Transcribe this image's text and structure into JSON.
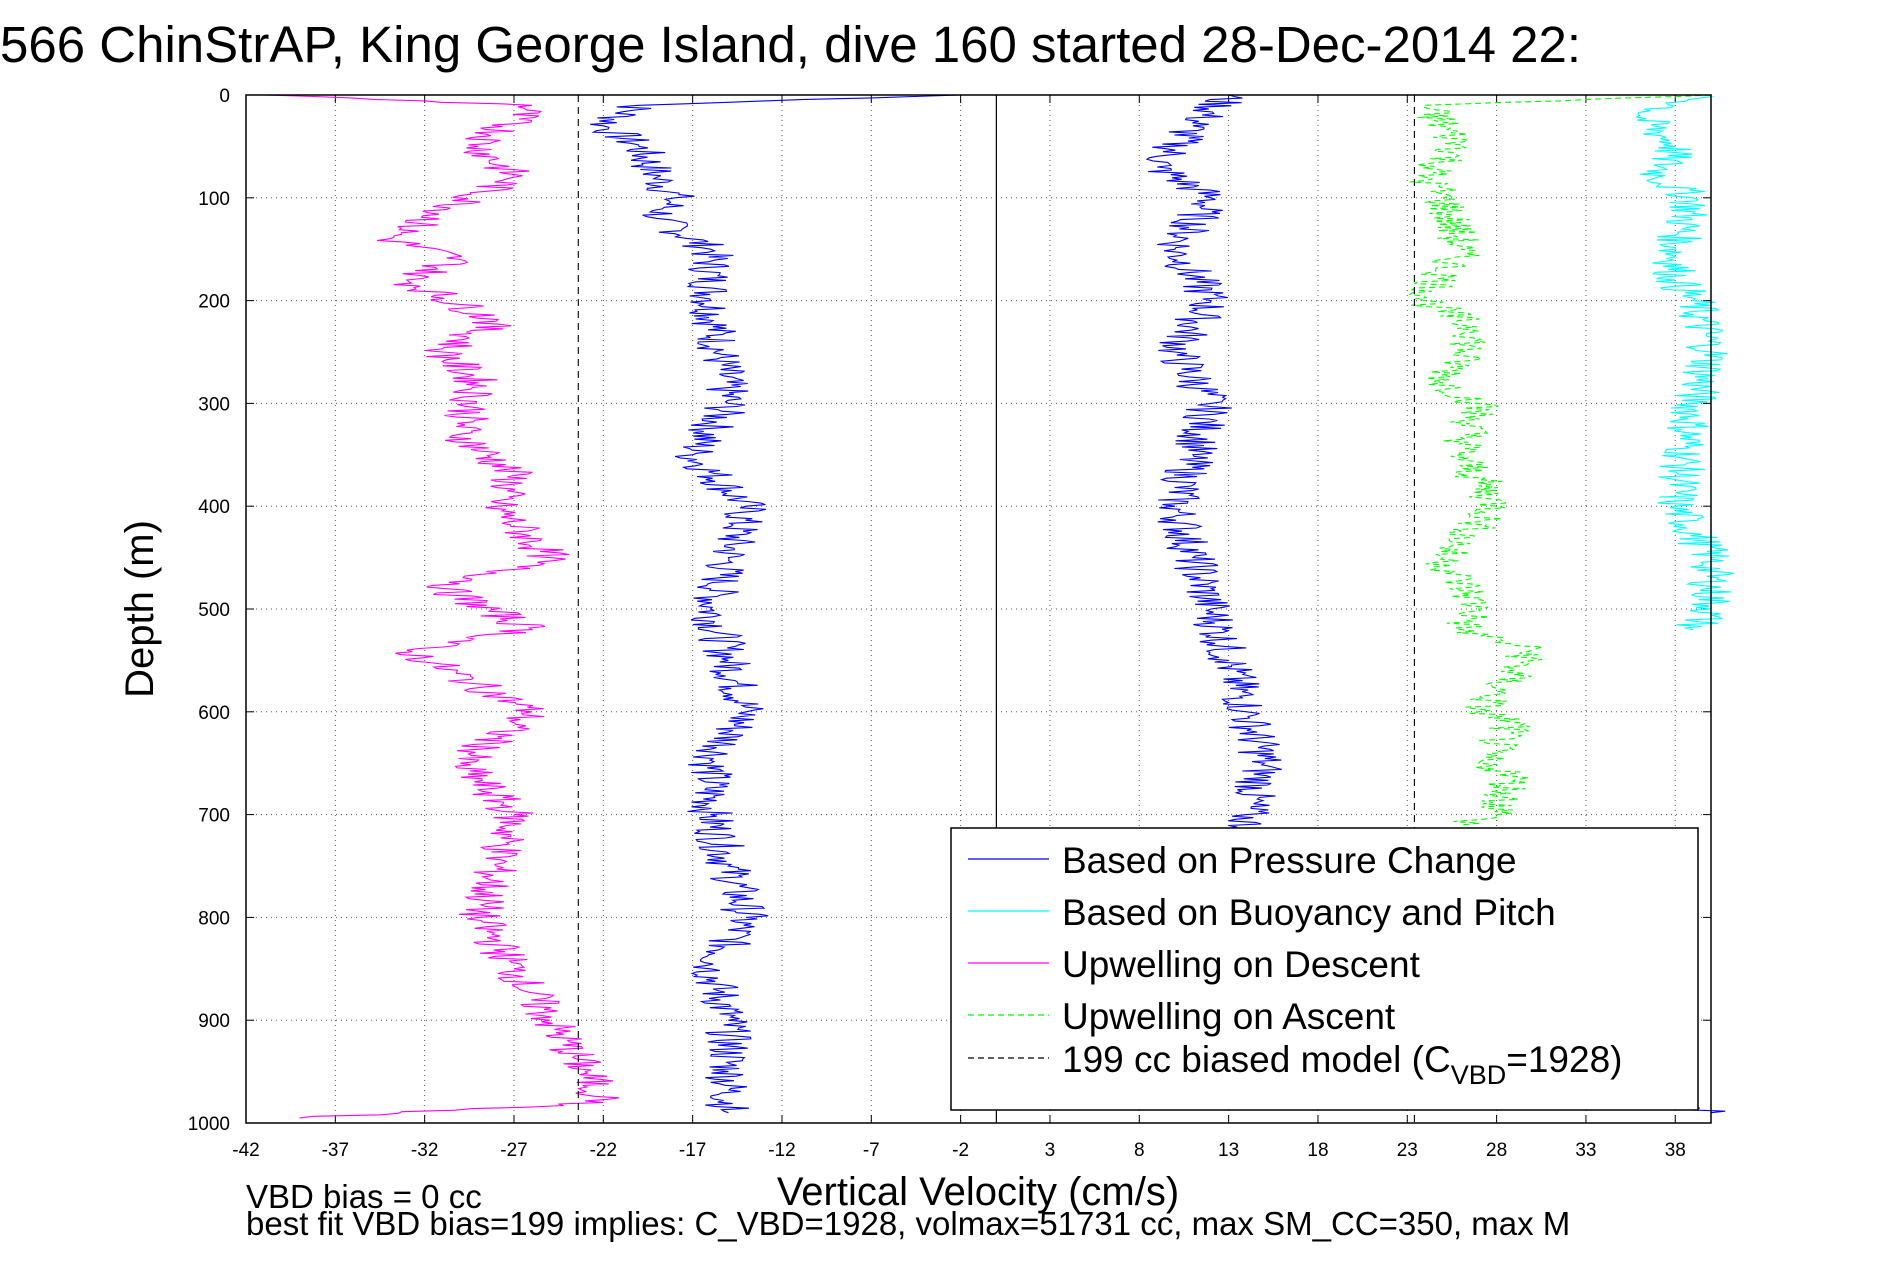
{
  "chart_data": {
    "type": "line",
    "title": "566 ChinStrAP, King George Island, dive 160 started 28-Dec-2014 22:",
    "xlabel": "Vertical Velocity (cm/s)",
    "ylabel": "Depth (m)",
    "xlim": [
      -42,
      40
    ],
    "ylim": [
      0,
      1000
    ],
    "y_reversed": true,
    "grid": true,
    "x_ticks": [
      "-42",
      "-37",
      "-32",
      "-27",
      "-22",
      "-17",
      "-12",
      "-7",
      "-2",
      "3",
      "8",
      "13",
      "18",
      "23",
      "28",
      "33",
      "38"
    ],
    "y_ticks": [
      "0",
      "100",
      "200",
      "300",
      "400",
      "500",
      "600",
      "700",
      "800",
      "900",
      "1000"
    ],
    "legend_position": "bottom-right",
    "series": [
      {
        "name": "Based on Pressure Change",
        "color": "#0000ff",
        "style": "solid",
        "x": [
          -2,
          -20,
          -22,
          -20,
          -19,
          -18,
          -19,
          -16,
          -16,
          -15,
          -17,
          -14,
          -15,
          -16,
          -15,
          -14,
          -16,
          -16,
          -15,
          -14,
          -16,
          -15,
          -15,
          -15,
          13,
          11,
          9,
          12,
          10,
          12,
          10,
          12,
          11,
          10,
          11,
          12,
          13,
          14,
          15,
          14,
          14,
          16,
          13,
          40
        ],
        "y": [
          0,
          10,
          30,
          50,
          80,
          100,
          120,
          150,
          200,
          300,
          350,
          400,
          450,
          500,
          550,
          600,
          650,
          700,
          750,
          800,
          850,
          900,
          950,
          990,
          0,
          30,
          70,
          100,
          150,
          200,
          250,
          300,
          350,
          400,
          450,
          500,
          550,
          600,
          650,
          700,
          750,
          800,
          900,
          990
        ]
      },
      {
        "name": "Based on Buoyancy and Pitch",
        "color": "#00ffff",
        "style": "solid",
        "x": [
          40,
          36,
          38,
          37,
          39,
          38,
          38,
          39,
          40,
          39,
          38,
          40,
          40,
          39
        ],
        "y": [
          0,
          20,
          50,
          80,
          100,
          150,
          180,
          200,
          250,
          300,
          400,
          450,
          500,
          520
        ]
      },
      {
        "name": "Upwelling on Descent",
        "color": "#ff00ff",
        "style": "solid",
        "x": [
          -41,
          -26,
          -29,
          -27,
          -34,
          -30,
          -33,
          -28,
          -31,
          -29,
          -30,
          -27,
          -28,
          -25,
          -31,
          -26,
          -33,
          -26,
          -30,
          -27,
          -28,
          -29,
          -27,
          -25,
          -23,
          -22,
          -39
        ],
        "y": [
          0,
          10,
          50,
          80,
          140,
          160,
          180,
          220,
          250,
          280,
          330,
          370,
          400,
          450,
          480,
          520,
          540,
          600,
          650,
          700,
          750,
          800,
          850,
          900,
          950,
          980,
          995
        ]
      },
      {
        "name": "Upwelling on Ascent",
        "color": "#00ff00",
        "style": "dashed",
        "x": [
          40,
          24,
          26,
          24,
          25,
          26,
          24,
          27,
          25,
          27,
          26,
          28,
          25,
          27,
          26,
          30,
          27,
          29,
          27,
          29,
          28,
          27,
          26
        ],
        "y": [
          0,
          10,
          50,
          80,
          100,
          150,
          200,
          230,
          280,
          300,
          350,
          400,
          450,
          500,
          520,
          540,
          600,
          610,
          650,
          660,
          700,
          705,
          710
        ]
      },
      {
        "name": "199 cc biased model (C_VBD=1928)",
        "color": "#000000",
        "style": "dashed",
        "x": [
          -23.4,
          -23.4,
          23.4,
          23.4
        ],
        "y": [
          0,
          1000,
          0,
          1000
        ]
      }
    ],
    "reference_line_x": 0,
    "legend": [
      {
        "name": "Based on Pressure Change",
        "color": "#0000ff",
        "style": "solid"
      },
      {
        "name": "Based on Buoyancy and Pitch",
        "color": "#00ffff",
        "style": "solid"
      },
      {
        "name": "Upwelling on Descent",
        "color": "#ff00ff",
        "style": "solid"
      },
      {
        "name": "Upwelling on Ascent",
        "color": "#00ff00",
        "style": "dashed"
      },
      {
        "name_main": "199 cc biased model (C",
        "name_sub": "VBD",
        "name_tail": "=1928)",
        "color": "#000000",
        "style": "dashed"
      }
    ],
    "annotations": [
      "VBD bias = 0 cc",
      "best fit VBD bias=199 implies: C_VBD=1928, volmax=51731 cc, max SM_CC=350, max M"
    ]
  }
}
